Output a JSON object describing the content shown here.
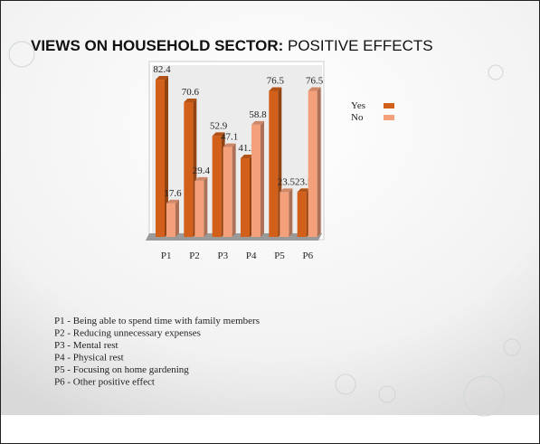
{
  "header": {
    "title": "VIEWS ON HOUSEHOLD SECTOR:",
    "title_rest": "POSITIVE EFFECTS"
  },
  "chart_data": {
    "type": "bar3d",
    "categories": [
      "P1",
      "P2",
      "P3",
      "P4",
      "P5",
      "P6"
    ],
    "series": [
      {
        "name": "Yes",
        "color": "#d2601a",
        "values": [
          82.4,
          70.6,
          52.9,
          41.2,
          76.5,
          23.5
        ]
      },
      {
        "name": "No",
        "color": "#f4a07a",
        "values": [
          17.6,
          29.4,
          47.1,
          58.8,
          23.5,
          76.5
        ]
      }
    ],
    "ylim": [
      0,
      90
    ],
    "legend": "right"
  },
  "notes": [
    "P1 - Being able to spend time with family members",
    "P2 - Reducing unnecessary expenses",
    "P3 - Mental rest",
    "P4 - Physical rest",
    "P5 - Focusing on home gardening",
    "P6 - Other positive effect"
  ]
}
